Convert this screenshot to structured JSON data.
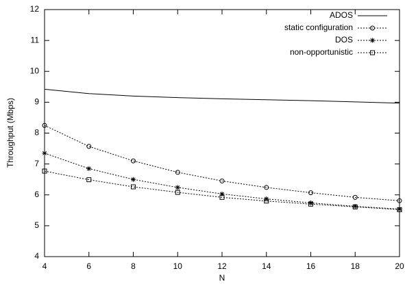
{
  "chart_data": {
    "type": "line",
    "x_label": "N",
    "y_label": "Throughput (Mbps)",
    "x": [
      4,
      6,
      8,
      10,
      12,
      14,
      16,
      18,
      20
    ],
    "series": [
      {
        "name": "ADOS",
        "color": "#000000",
        "marker": "none",
        "dashed": false,
        "values": [
          9.42,
          9.28,
          9.2,
          9.15,
          9.11,
          9.08,
          9.05,
          9.01,
          8.97
        ]
      },
      {
        "name": "static configuration",
        "color": "#000000",
        "marker": "circle",
        "dashed": true,
        "values": [
          8.25,
          7.57,
          7.1,
          6.73,
          6.45,
          6.24,
          6.07,
          5.92,
          5.81
        ]
      },
      {
        "name": "DOS",
        "color": "#000000",
        "marker": "asterisk",
        "dashed": true,
        "values": [
          7.35,
          6.85,
          6.5,
          6.24,
          6.03,
          5.87,
          5.74,
          5.63,
          5.54
        ]
      },
      {
        "name": "non-opportunistic",
        "color": "#000000",
        "marker": "square",
        "dashed": true,
        "values": [
          6.77,
          6.49,
          6.26,
          6.08,
          5.92,
          5.8,
          5.7,
          5.61,
          5.52
        ]
      }
    ],
    "xlim": [
      4,
      20
    ],
    "xticks": [
      4,
      6,
      8,
      10,
      12,
      14,
      16,
      18,
      20
    ],
    "ylim": [
      4,
      12
    ],
    "yticks": [
      4,
      5,
      6,
      7,
      8,
      9,
      10,
      11,
      12
    ],
    "legend": "top-right",
    "grid": false
  }
}
